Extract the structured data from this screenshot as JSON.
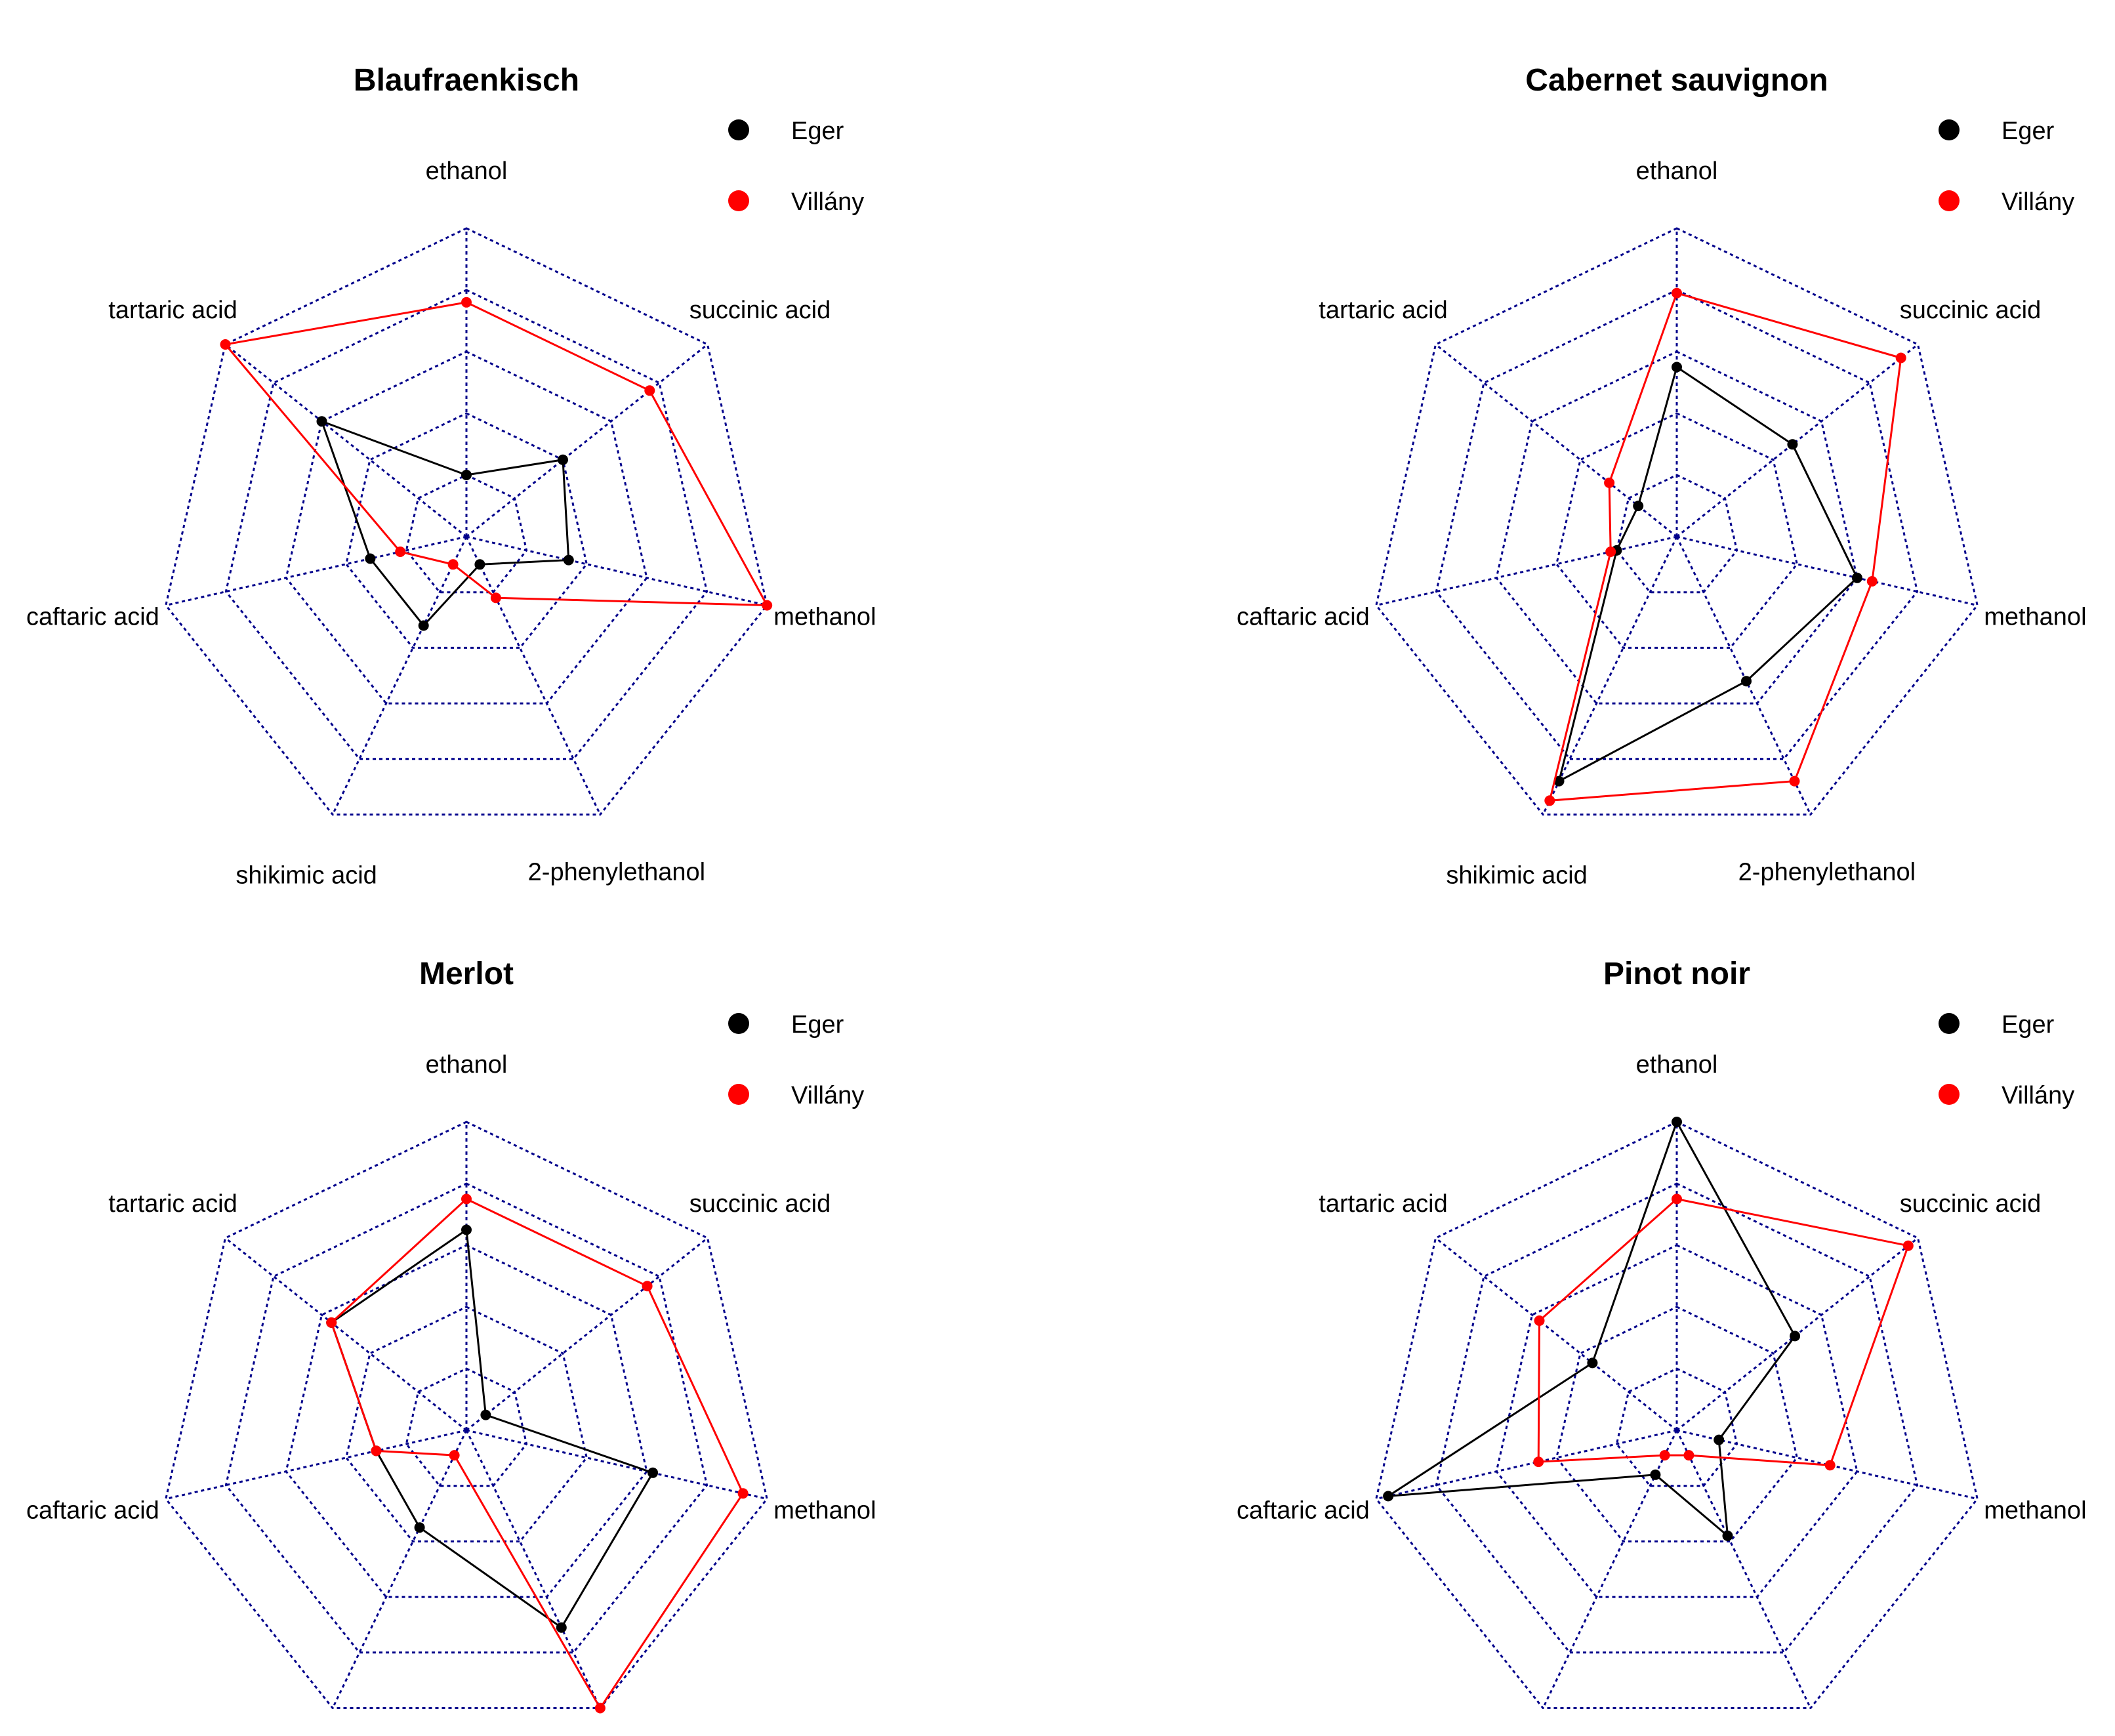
{
  "chart_data": [
    {
      "type": "radar",
      "title": "Blaufraenkisch",
      "axes": [
        "ethanol",
        "succinic acid",
        "methanol",
        "2-phenylethanol",
        "shikimic acid",
        "caftaric acid",
        "tartaric acid"
      ],
      "rlim": [
        0,
        1
      ],
      "grid_levels": [
        0.2,
        0.4,
        0.6,
        0.8,
        1.0
      ],
      "legend": "top-right",
      "series": [
        {
          "name": "Eger",
          "color": "#000000",
          "values": [
            0.2,
            0.4,
            0.34,
            0.1,
            0.32,
            0.32,
            0.6
          ]
        },
        {
          "name": "Villány",
          "color": "#ff0000",
          "values": [
            0.76,
            0.76,
            1.0,
            0.22,
            0.1,
            0.22,
            1.0
          ]
        }
      ]
    },
    {
      "type": "radar",
      "title": "Cabernet sauvignon",
      "axes": [
        "ethanol",
        "succinic acid",
        "methanol",
        "2-phenylethanol",
        "shikimic acid",
        "caftaric acid",
        "tartaric acid"
      ],
      "rlim": [
        0,
        1
      ],
      "grid_levels": [
        0.2,
        0.4,
        0.6,
        0.8,
        1.0
      ],
      "legend": "top-right",
      "series": [
        {
          "name": "Eger",
          "color": "#000000",
          "values": [
            0.55,
            0.48,
            0.6,
            0.52,
            0.88,
            0.2,
            0.16
          ]
        },
        {
          "name": "Villány",
          "color": "#ff0000",
          "values": [
            0.79,
            0.93,
            0.65,
            0.88,
            0.95,
            0.22,
            0.28
          ]
        }
      ]
    },
    {
      "type": "radar",
      "title": "Merlot",
      "axes": [
        "ethanol",
        "succinic acid",
        "methanol",
        "2-phenylethanol",
        "shikimic acid",
        "caftaric acid",
        "tartaric acid"
      ],
      "rlim": [
        0,
        1
      ],
      "grid_levels": [
        0.2,
        0.4,
        0.6,
        0.8,
        1.0
      ],
      "legend": "top-right",
      "series": [
        {
          "name": "Eger",
          "color": "#000000",
          "values": [
            0.65,
            0.08,
            0.62,
            0.71,
            0.35,
            0.3,
            0.56
          ]
        },
        {
          "name": "Villány",
          "color": "#ff0000",
          "values": [
            0.75,
            0.75,
            0.92,
            1.0,
            0.09,
            0.3,
            0.56
          ]
        }
      ]
    },
    {
      "type": "radar",
      "title": "Pinot noir",
      "axes": [
        "ethanol",
        "succinic acid",
        "methanol",
        "2-phenylethanol",
        "shikimic acid",
        "caftaric acid",
        "tartaric acid"
      ],
      "rlim": [
        0,
        1
      ],
      "grid_levels": [
        0.2,
        0.4,
        0.6,
        0.8,
        1.0
      ],
      "legend": "top-right",
      "series": [
        {
          "name": "Eger",
          "color": "#000000",
          "values": [
            1.0,
            0.49,
            0.14,
            0.38,
            0.16,
            0.96,
            0.35
          ]
        },
        {
          "name": "Villány",
          "color": "#ff0000",
          "values": [
            0.75,
            0.96,
            0.51,
            0.09,
            0.09,
            0.46,
            0.57
          ]
        }
      ]
    }
  ]
}
